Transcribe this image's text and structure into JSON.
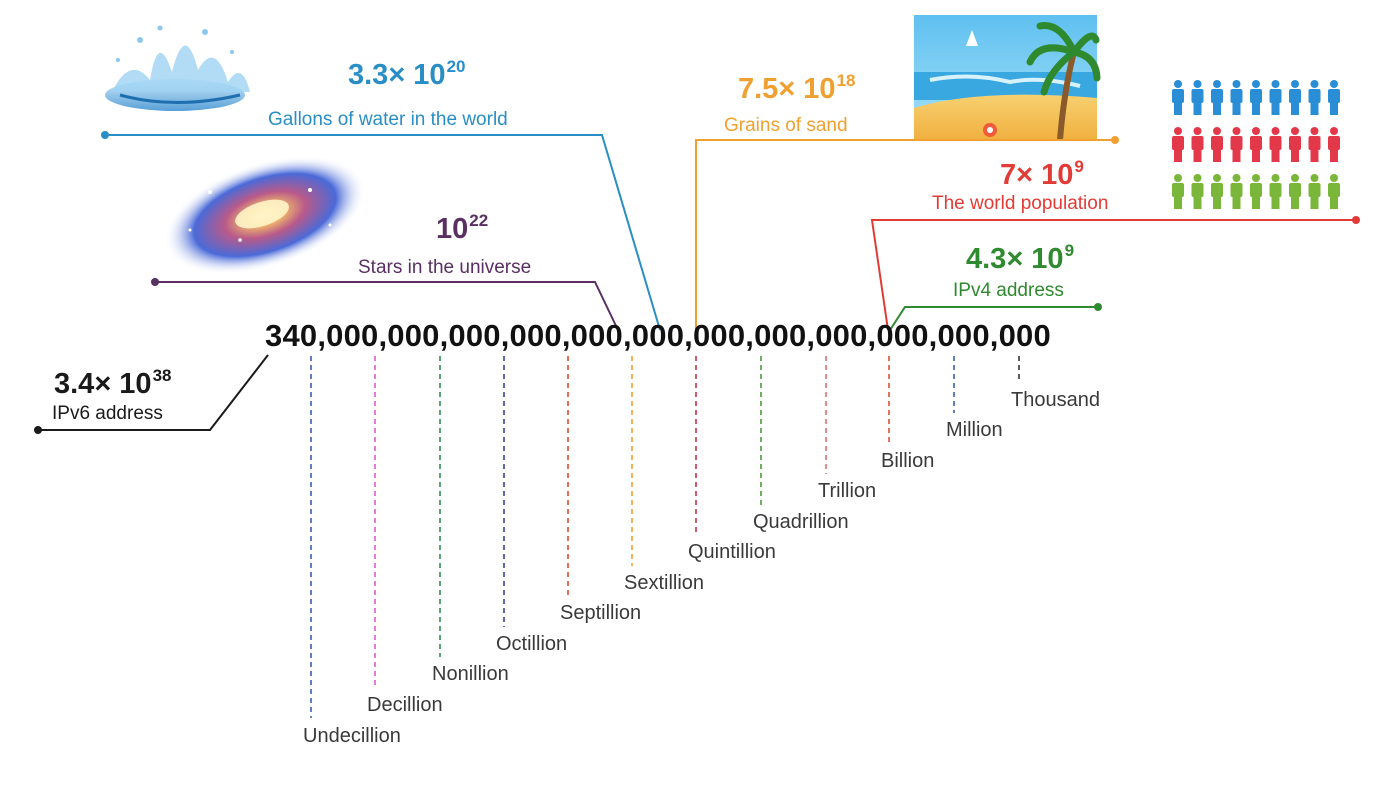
{
  "big_number": "340,000,000,000,000,000,000,000,000,000,000,000,000",
  "colors": {
    "ipv6": "#1a1a1a",
    "stars": "#5a2f63",
    "water": "#2a8ec6",
    "sand": "#f0a030",
    "population": "#e23b35",
    "ipv4": "#2f8a2f",
    "unit_text": "#3a3a3a"
  },
  "callouts": {
    "ipv6": {
      "mantissa": "3.4× 10",
      "exponent": "38",
      "label": "IPv6 address"
    },
    "stars": {
      "mantissa": "10",
      "exponent": "22",
      "label": "Stars in the universe"
    },
    "water": {
      "mantissa": "3.3× 10",
      "exponent": "20",
      "label": "Gallons of water in the world"
    },
    "sand": {
      "mantissa": "7.5× 10",
      "exponent": "18",
      "label": "Grains of sand"
    },
    "population": {
      "mantissa": "7× 10",
      "exponent": "9",
      "label": "The world population"
    },
    "ipv4": {
      "mantissa": "4.3× 10",
      "exponent": "9",
      "label": "IPv4 address"
    }
  },
  "units": [
    {
      "name": "Undecillion",
      "color": "#3a5fb0"
    },
    {
      "name": "Decillion",
      "color": "#e05ad0"
    },
    {
      "name": "Nonillion",
      "color": "#2f8a4f"
    },
    {
      "name": "Octillion",
      "color": "#3a3f9a"
    },
    {
      "name": "Septillion",
      "color": "#e04a30"
    },
    {
      "name": "Sextillion",
      "color": "#f0a030"
    },
    {
      "name": "Quintillion",
      "color": "#c83040"
    },
    {
      "name": "Quadrillion",
      "color": "#4a9a3a"
    },
    {
      "name": "Trillion",
      "color": "#e07070"
    },
    {
      "name": "Billion",
      "color": "#e05030"
    },
    {
      "name": "Million",
      "color": "#3a5fb0"
    },
    {
      "name": "Thousand",
      "color": "#333333"
    }
  ],
  "icons": {
    "water": "water-splash-icon",
    "galaxy": "galaxy-icon",
    "beach": "beach-icon",
    "people": "people-grid-icon"
  }
}
